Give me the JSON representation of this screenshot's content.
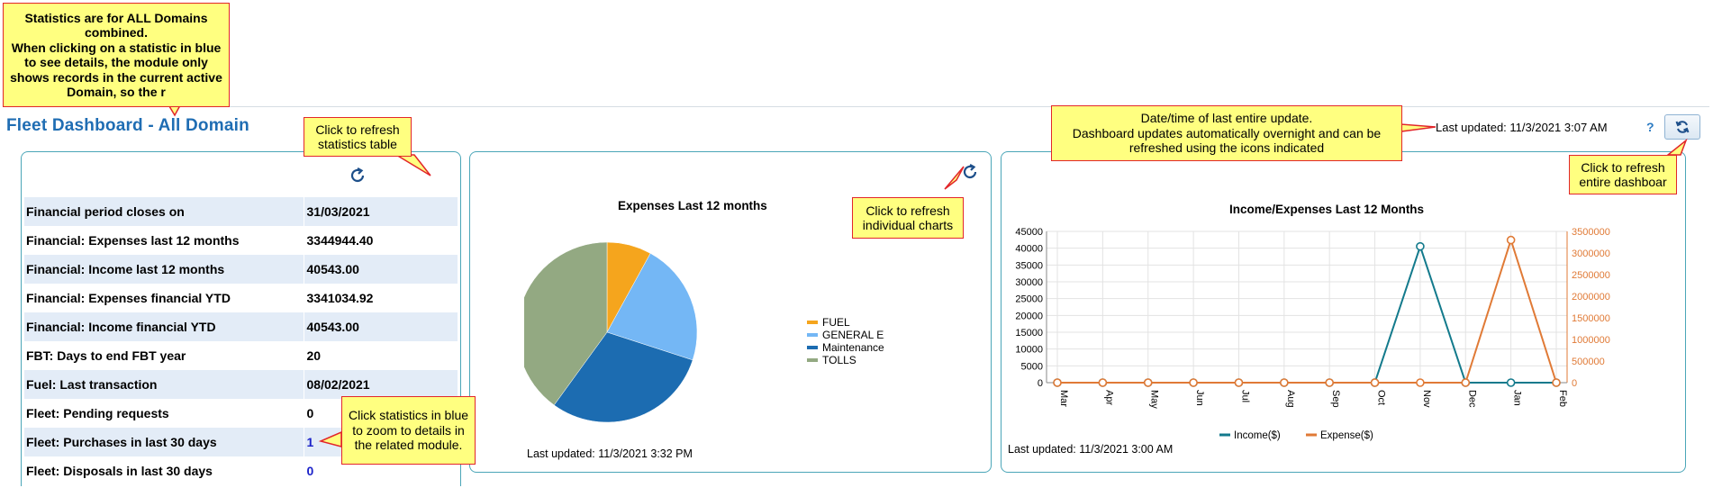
{
  "header": {
    "title": "Fleet Dashboard - All Domain",
    "last_updated": "Last updated: 11/3/2021 3:07 AM",
    "help": "?"
  },
  "stats": {
    "rows": [
      {
        "label": "Financial period closes on",
        "value": "31/03/2021",
        "link": false
      },
      {
        "label": "Financial: Expenses last 12 months",
        "value": "3344944.40",
        "link": false
      },
      {
        "label": "Financial: Income last 12 months",
        "value": "40543.00",
        "link": false
      },
      {
        "label": "Financial: Expenses financial YTD",
        "value": "3341034.92",
        "link": false
      },
      {
        "label": "Financial: Income financial YTD",
        "value": "40543.00",
        "link": false
      },
      {
        "label": "FBT: Days to end FBT year",
        "value": "20",
        "link": false
      },
      {
        "label": "Fuel: Last transaction",
        "value": "08/02/2021",
        "link": false
      },
      {
        "label": "Fleet: Pending requests",
        "value": "0",
        "link": false
      },
      {
        "label": "Fleet: Purchases in last 30 days",
        "value": "1",
        "link": true
      },
      {
        "label": "Fleet: Disposals in last 30 days",
        "value": "0",
        "link": true
      }
    ]
  },
  "pie_panel": {
    "last_updated": "Last updated: 11/3/2021 3:32 PM"
  },
  "line_panel": {
    "last_updated": "Last updated: 11/3/2021 3:00 AM"
  },
  "callouts": {
    "domains": "Statistics are for ALL Domains combined.\nWhen clicking on a statistic in blue to see details, the module only shows records in the current active Domain, so the r",
    "refresh_table": "Click to refresh statistics table",
    "refresh_charts": "Click to refresh individual charts",
    "last_update": "Date/time of last entire update.\nDashboard updates automatically overnight and can be refreshed using the icons indicated",
    "refresh_dashboard": "Click to refresh entire dashboar",
    "zoom": "Click statistics in blue to zoom to details in the related module."
  },
  "icons": {
    "refresh": "refresh-icon",
    "refresh_all": "sync-icon"
  },
  "chart_data": [
    {
      "type": "pie",
      "title": "Expenses Last 12 months",
      "categories": [
        "FUEL",
        "GENERAL EXPENSE",
        "Maintenance",
        "TOLLS"
      ],
      "values": [
        8,
        22,
        30,
        40
      ],
      "colors": [
        "#f5a51d",
        "#74b7f5",
        "#1c6cb1",
        "#93a982"
      ],
      "legend": "right"
    },
    {
      "type": "line",
      "title": "Income/Expenses Last 12 Months",
      "categories": [
        "Mar",
        "Apr",
        "May",
        "Jun",
        "Jul",
        "Aug",
        "Sep",
        "Oct",
        "Nov",
        "Dec",
        "Jan",
        "Feb"
      ],
      "series": [
        {
          "name": "Income($)",
          "axis": "left",
          "color": "#137a8c",
          "values": [
            0,
            0,
            0,
            0,
            0,
            0,
            0,
            0,
            40543,
            0,
            0,
            0
          ]
        },
        {
          "name": "Expense($)",
          "axis": "right",
          "color": "#e07a36",
          "values": [
            0,
            0,
            0,
            0,
            0,
            0,
            0,
            0,
            0,
            0,
            3300000,
            0
          ]
        }
      ],
      "ylim": [
        0,
        45000
      ],
      "yticks": [
        0,
        5000,
        10000,
        15000,
        20000,
        25000,
        30000,
        35000,
        40000,
        45000
      ],
      "y2lim": [
        0,
        3500000
      ],
      "y2ticks": [
        0,
        500000,
        1000000,
        1500000,
        2000000,
        2500000,
        3000000,
        3500000
      ],
      "grid": true,
      "legend": "bottom"
    }
  ]
}
